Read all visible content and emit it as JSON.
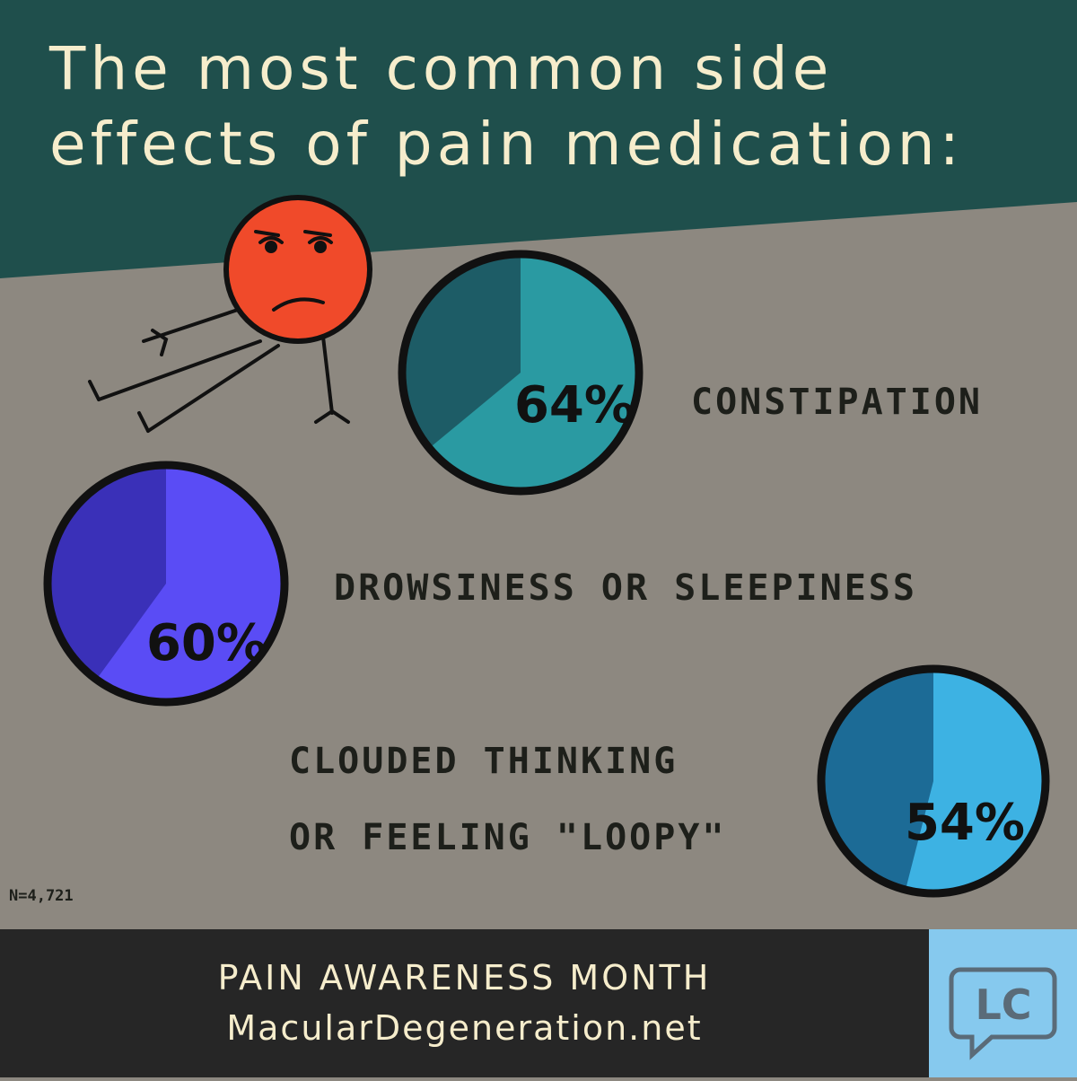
{
  "title": {
    "line1": "The most common side",
    "line2": "effects of pain medication:"
  },
  "chart_data": [
    {
      "type": "pie",
      "label": "CONSTIPATION",
      "value": 64,
      "value_label": "64%",
      "colors": {
        "value": "#2a9aa2",
        "rest": "#1d5c66"
      }
    },
    {
      "type": "pie",
      "label": "DROWSINESS OR SLEEPINESS",
      "value": 60,
      "value_label": "60%",
      "colors": {
        "value": "#5a4cf5",
        "rest": "#3a30b8"
      }
    },
    {
      "type": "pie",
      "label_line1": "CLOUDED THINKING",
      "label_line2": "OR FEELING \"LOOPY\"",
      "value": 54,
      "value_label": "54%",
      "colors": {
        "value": "#3db2e3",
        "rest": "#1c6b96"
      }
    }
  ],
  "sample_size": "N=4,721",
  "footer": {
    "line1": "PAIN AWARENESS MONTH",
    "line2": "MacularDegeneration.net",
    "logo": "LC"
  },
  "colors": {
    "band": "#1f4f4c",
    "background": "#8d8880",
    "title": "#f6edcc",
    "footer": "#262626",
    "logo": "#86c9ee",
    "face": "#f04a2a"
  }
}
